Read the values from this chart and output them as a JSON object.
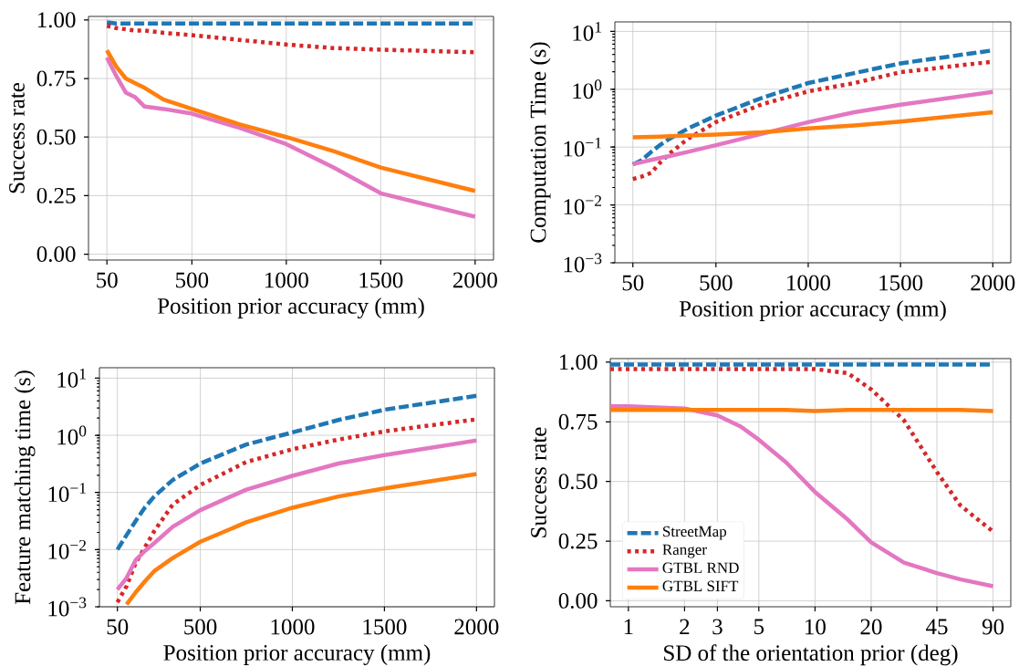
{
  "chart_data": [
    {
      "type": "line",
      "xlabel": "Position prior accuracy (mm)",
      "ylabel": "Success rate",
      "grid": true,
      "x": [
        50,
        100,
        150,
        200,
        250,
        350,
        500,
        750,
        1000,
        1250,
        1500,
        2000
      ],
      "xlim": [
        -47.5,
        2097.5
      ],
      "xticks": [
        50,
        500,
        1000,
        1500,
        2000
      ],
      "ylim": [
        -0.025,
        1.015
      ],
      "yticks": [
        {
          "value": 0,
          "label": "0.00"
        },
        {
          "value": 0.25,
          "label": "0.25"
        },
        {
          "value": 0.5,
          "label": "0.50"
        },
        {
          "value": 0.75,
          "label": "0.75"
        },
        {
          "value": 1,
          "label": "1.00"
        }
      ],
      "series": [
        {
          "color": "#1f77b4",
          "line_style": "dashed",
          "values": [
            0.99,
            0.985,
            0.985,
            0.985,
            0.985,
            0.985,
            0.985,
            0.985,
            0.985,
            0.985,
            0.985,
            0.985
          ]
        },
        {
          "color": "#d62728",
          "line_style": "dotted",
          "values": [
            0.975,
            0.965,
            0.96,
            0.955,
            0.955,
            0.945,
            0.935,
            0.915,
            0.895,
            0.88,
            0.873,
            0.862
          ]
        },
        {
          "color": "#e377c2",
          "line_style": "solid",
          "values": [
            0.84,
            0.76,
            0.69,
            0.67,
            0.63,
            0.62,
            0.6,
            0.54,
            0.47,
            0.37,
            0.26,
            0.16
          ]
        },
        {
          "color": "#ff7f0e",
          "line_style": "solid",
          "values": [
            0.87,
            0.8,
            0.75,
            0.73,
            0.71,
            0.66,
            0.62,
            0.555,
            0.5,
            0.44,
            0.37,
            0.27
          ]
        }
      ]
    },
    {
      "type": "line",
      "xlabel": "Position prior accuracy (mm)",
      "ylabel": "Computation Time (s)",
      "grid": true,
      "log": "y",
      "x": [
        50,
        100,
        150,
        200,
        250,
        350,
        500,
        750,
        1000,
        1250,
        1500,
        2000
      ],
      "xlim": [
        -47.5,
        2097.5
      ],
      "xticks": [
        50,
        500,
        1000,
        1500,
        2000
      ],
      "ylim": [
        0.001,
        14.6
      ],
      "yticks": [
        {
          "value": 0.001,
          "label": "10$^{−3}$"
        },
        {
          "value": 0.01,
          "label": "10$^{−2}$"
        },
        {
          "value": 0.1,
          "label": "10$^{−1}$"
        },
        {
          "value": 1,
          "label": "10$^{0}$"
        },
        {
          "value": 10,
          "label": "10$^{1}$"
        }
      ],
      "series": [
        {
          "color": "#1f77b4",
          "line_style": "dashed",
          "values": [
            0.05,
            0.06,
            0.083,
            0.11,
            0.14,
            0.21,
            0.35,
            0.71,
            1.28,
            1.9,
            2.8,
            4.7
          ]
        },
        {
          "color": "#d62728",
          "line_style": "dotted",
          "values": [
            0.028,
            0.031,
            0.036,
            0.055,
            0.078,
            0.14,
            0.27,
            0.55,
            0.92,
            1.28,
            1.97,
            3.0
          ]
        },
        {
          "color": "#e377c2",
          "line_style": "solid",
          "values": [
            0.051,
            0.055,
            0.06,
            0.065,
            0.07,
            0.083,
            0.108,
            0.17,
            0.27,
            0.4,
            0.54,
            0.9
          ]
        },
        {
          "color": "#ff7f0e",
          "line_style": "solid",
          "values": [
            0.148,
            0.149,
            0.15,
            0.152,
            0.154,
            0.158,
            0.164,
            0.18,
            0.21,
            0.236,
            0.276,
            0.4
          ]
        }
      ]
    },
    {
      "type": "line",
      "xlabel": "Position prior accuracy (mm)",
      "ylabel": "Feature matching time (s)",
      "grid": true,
      "log": "y",
      "x": [
        50,
        100,
        150,
        200,
        250,
        350,
        500,
        750,
        1000,
        1250,
        1500,
        2000
      ],
      "xlim": [
        -47.5,
        2097.5
      ],
      "xticks": [
        50,
        500,
        1000,
        1500,
        2000
      ],
      "ylim": [
        0.001,
        15.2
      ],
      "yticks": [
        {
          "value": 0.001,
          "label": "10$^{−3}$"
        },
        {
          "value": 0.01,
          "label": "10$^{−2}$"
        },
        {
          "value": 0.1,
          "label": "10$^{−1}$"
        },
        {
          "value": 1,
          "label": "10$^{0}$"
        },
        {
          "value": 10,
          "label": "10$^{1}$"
        }
      ],
      "series": [
        {
          "color": "#1f77b4",
          "line_style": "dashed",
          "values": [
            0.01,
            0.018,
            0.032,
            0.055,
            0.085,
            0.165,
            0.32,
            0.69,
            1.12,
            1.85,
            2.8,
            4.9
          ]
        },
        {
          "color": "#d62728",
          "line_style": "dotted",
          "values": [
            0.0012,
            0.0023,
            0.0059,
            0.011,
            0.021,
            0.061,
            0.135,
            0.34,
            0.57,
            0.84,
            1.17,
            1.9
          ]
        },
        {
          "color": "#e377c2",
          "line_style": "solid",
          "values": [
            0.002,
            0.0032,
            0.0066,
            0.0095,
            0.013,
            0.025,
            0.049,
            0.112,
            0.195,
            0.32,
            0.45,
            0.81
          ]
        },
        {
          "color": "#ff7f0e",
          "line_style": "solid",
          "values": [
            null,
            0.0011,
            0.0018,
            0.0028,
            0.0042,
            0.0071,
            0.0137,
            0.03,
            0.054,
            0.085,
            0.118,
            0.21
          ]
        }
      ]
    },
    {
      "type": "line",
      "xlabel": "SD of the orientation prior (deg)",
      "ylabel": "Success rate",
      "grid": true,
      "log": "x",
      "legend": "lower left",
      "x": [
        0.8,
        1,
        2,
        3,
        4,
        5,
        7,
        10,
        15,
        20,
        30,
        45,
        60,
        90
      ],
      "xlim": [
        0.8,
        112
      ],
      "xticks": [
        1,
        2,
        3,
        5,
        10,
        20,
        45,
        90
      ],
      "ylim": [
        -0.025,
        1.015
      ],
      "yticks": [
        {
          "value": 0,
          "label": "0.00"
        },
        {
          "value": 0.25,
          "label": "0.25"
        },
        {
          "value": 0.5,
          "label": "0.50"
        },
        {
          "value": 0.75,
          "label": "0.75"
        },
        {
          "value": 1,
          "label": "1.00"
        }
      ],
      "series": [
        {
          "name": "StreetMap",
          "color": "#1f77b4",
          "line_style": "dashed",
          "values": [
            0.99,
            0.99,
            0.99,
            0.99,
            0.99,
            0.99,
            0.99,
            0.99,
            0.99,
            0.99,
            0.99,
            0.99,
            0.99,
            0.99
          ]
        },
        {
          "name": "Ranger",
          "color": "#d62728",
          "line_style": "dotted",
          "values": [
            0.971,
            0.971,
            0.971,
            0.971,
            0.971,
            0.971,
            0.971,
            0.971,
            0.954,
            0.886,
            0.756,
            0.54,
            0.4,
            0.29
          ]
        },
        {
          "name": "GTBL RND",
          "color": "#e377c2",
          "line_style": "solid",
          "values": [
            0.815,
            0.815,
            0.806,
            0.777,
            0.73,
            0.675,
            0.58,
            0.456,
            0.34,
            0.245,
            0.16,
            0.116,
            0.09,
            0.061
          ]
        },
        {
          "name": "GTBL SIFT",
          "color": "#ff7f0e",
          "line_style": "solid",
          "values": [
            0.8,
            0.8,
            0.8,
            0.8,
            0.8,
            0.8,
            0.8,
            0.795,
            0.8,
            0.8,
            0.8,
            0.8,
            0.8,
            0.795
          ]
        }
      ]
    }
  ]
}
